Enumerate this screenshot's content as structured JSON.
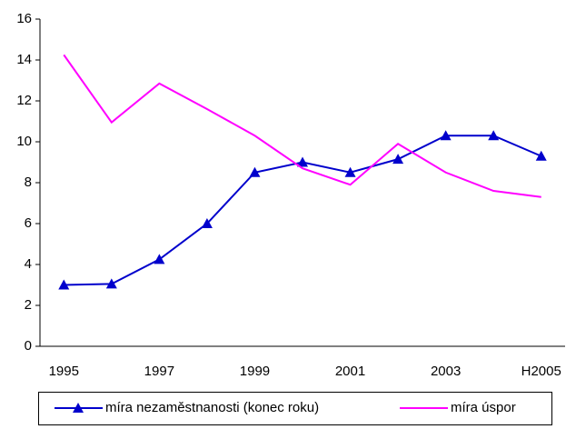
{
  "chart_data": {
    "type": "line",
    "categories": [
      "1995",
      null,
      "1997",
      null,
      "1999",
      null,
      "2001",
      null,
      "2003",
      null,
      "H2005"
    ],
    "series": [
      {
        "name": "míra nezaměstnanosti (konec roku)",
        "color": "#0000cc",
        "marker": "triangle",
        "values": [
          3.0,
          3.05,
          4.25,
          6.0,
          8.5,
          9.0,
          8.5,
          9.15,
          10.3,
          10.3,
          9.3
        ]
      },
      {
        "name": "míra úspor",
        "color": "#ff00ff",
        "values": [
          14.25,
          10.95,
          12.85,
          11.6,
          10.3,
          8.7,
          7.9,
          9.9,
          8.5,
          7.6,
          7.3
        ]
      }
    ],
    "ylim": [
      0,
      16
    ],
    "yticks": [
      0,
      2,
      4,
      6,
      8,
      10,
      12,
      14,
      16
    ],
    "grid": false,
    "legend": "bottom"
  }
}
